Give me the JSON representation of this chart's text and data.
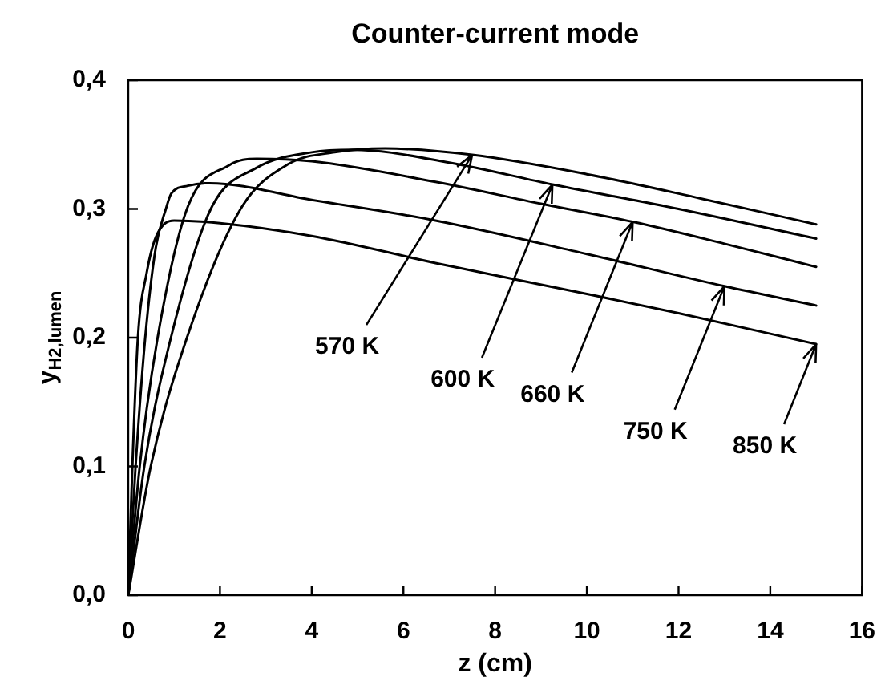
{
  "chart_data": {
    "type": "line",
    "title": "Counter-current mode",
    "xlabel": "z (cm)",
    "ylabel": "y$_{H2,lumen}$",
    "xlim": [
      0,
      16
    ],
    "xticks": [
      0,
      2,
      4,
      6,
      8,
      10,
      12,
      14,
      16
    ],
    "ylim": [
      0,
      0.4
    ],
    "yticks": [
      {
        "value": 0,
        "label": "0,0"
      },
      {
        "value": 0.1,
        "label": "0,1"
      },
      {
        "value": 0.2,
        "label": "0,2"
      },
      {
        "value": 0.3,
        "label": "0,3"
      },
      {
        "value": 0.4,
        "label": "0,4"
      }
    ],
    "grid": false,
    "legend": false,
    "marker": "none",
    "line_style": "solid",
    "series": [
      {
        "color": "#000000",
        "x": [
          0,
          0.49,
          1.28,
          2.45,
          3.5,
          4.5,
          5.6,
          7.5,
          10,
          12.5,
          15
        ],
        "values": [
          0,
          0.1,
          0.2,
          0.3,
          0.335,
          0.344,
          0.347,
          0.342,
          0.327,
          0.308,
          0.288
        ]
      },
      {
        "color": "#000000",
        "x": [
          0,
          0.35,
          0.93,
          1.8,
          2.8,
          4,
          4.9,
          7,
          9.25,
          12,
          15
        ],
        "values": [
          0,
          0.1,
          0.2,
          0.3,
          0.332,
          0.344,
          0.346,
          0.336,
          0.319,
          0.3,
          0.277
        ]
      },
      {
        "color": "#000000",
        "x": [
          0,
          0.25,
          0.64,
          1.28,
          2.2,
          2.8,
          4,
          6.7,
          9,
          11,
          13,
          15
        ],
        "values": [
          0,
          0.1,
          0.2,
          0.3,
          0.334,
          0.339,
          0.337,
          0.321,
          0.304,
          0.29,
          0.273,
          0.255
        ]
      },
      {
        "color": "#000000",
        "x": [
          0,
          0.16,
          0.37,
          0.6,
          0.82,
          0.94,
          1.3,
          1.77,
          4,
          6.7,
          10,
          13,
          15
        ],
        "values": [
          0,
          0.1,
          0.2,
          0.27,
          0.3,
          0.312,
          0.318,
          0.32,
          0.307,
          0.291,
          0.265,
          0.24,
          0.225
        ]
      },
      {
        "color": "#000000",
        "x": [
          0,
          0.09,
          0.21,
          0.4,
          0.6,
          1,
          2,
          4,
          6.7,
          10,
          12,
          15
        ],
        "values": [
          0,
          0.1,
          0.2,
          0.25,
          0.278,
          0.291,
          0.289,
          0.279,
          0.258,
          0.234,
          0.219,
          0.195
        ]
      }
    ],
    "annotations": [
      {
        "text": "570 K",
        "x": 7.5,
        "y": 0.342
      },
      {
        "text": "600 K",
        "x": 9.25,
        "y": 0.319
      },
      {
        "text": "660 K",
        "x": 11,
        "y": 0.29
      },
      {
        "text": "750 K",
        "x": 13,
        "y": 0.24
      },
      {
        "text": "850 K",
        "x": 15,
        "y": 0.195
      }
    ]
  }
}
